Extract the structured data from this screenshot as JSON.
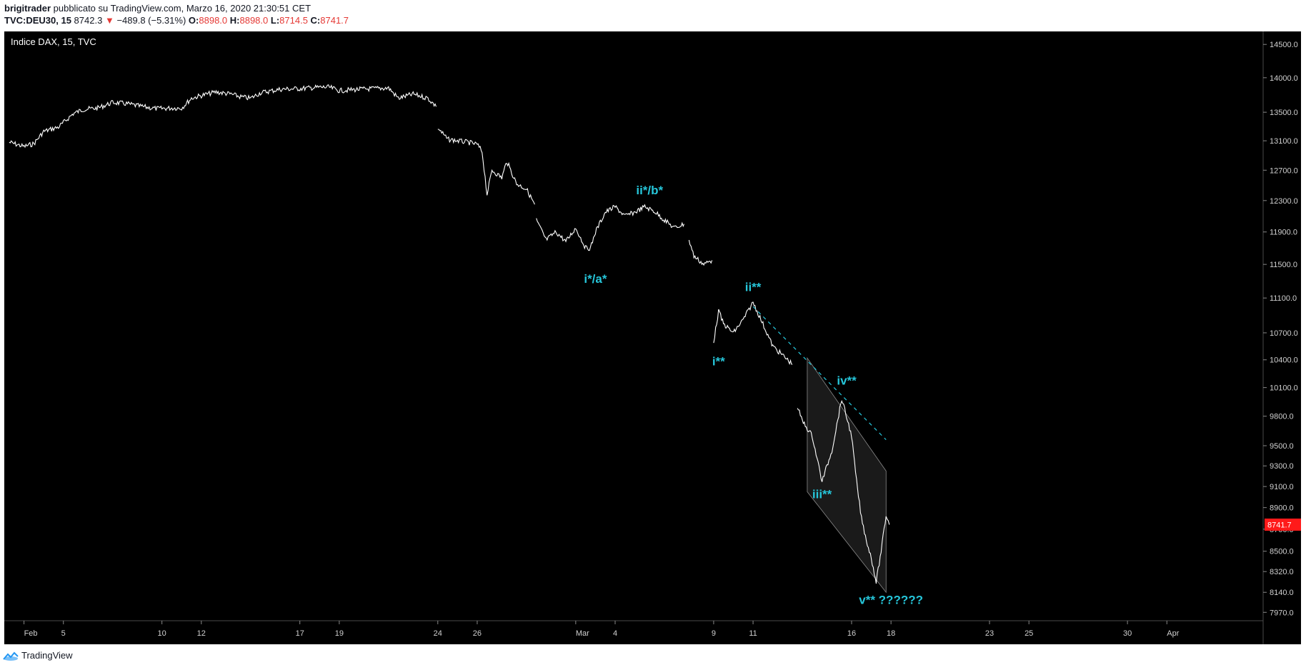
{
  "header": {
    "author": "brigitrader",
    "published_text": "pubblicato su TradingView.com, Marzo 16, 2020 21:30:51 CET",
    "symbol": "TVC:DEU30, 15",
    "last": "8742.3",
    "change": "−489.8 (−5.31%)",
    "o_label": "O:",
    "o": "8898.0",
    "h_label": "H:",
    "h": "8898.0",
    "l_label": "L:",
    "l": "8714.5",
    "c_label": "C:",
    "c": "8741.7"
  },
  "legend": "Indice DAX, 15, TVC",
  "price_badge": "8741.7",
  "footer": {
    "brand": "TradingView"
  },
  "colors": {
    "background": "#000000",
    "price": "#ffffff",
    "annotation": "#26c6da",
    "badge": "#ff1a1a",
    "down": "#e53935"
  },
  "chart_data": {
    "type": "line",
    "title": "Indice DAX, 15, TVC",
    "xlabel": "",
    "ylabel": "",
    "log_scale": true,
    "ylim": [
      7900,
      14700
    ],
    "y_ticks": [
      14500,
      14000,
      13500,
      13100,
      12700,
      12300,
      11900,
      11500,
      11100,
      10700,
      10400,
      10100,
      9800,
      9500,
      9300,
      9100,
      8900,
      8700,
      8500,
      8320,
      8140,
      7970
    ],
    "y_tick_labels": [
      "14500.0",
      "14000.0",
      "13500.0",
      "13100.0",
      "12700.0",
      "12300.0",
      "11900.0",
      "11500.0",
      "11100.0",
      "10700.0",
      "10400.0",
      "10100.0",
      "9800.0",
      "9500.0",
      "9300.0",
      "9100.0",
      "8900.0",
      "8700.0",
      "8500.0",
      "8320.0",
      "8140.0",
      "7970.0"
    ],
    "x_range_days": [
      "2020-02-02",
      "2020-04-04"
    ],
    "x_ticks": [
      {
        "date": "2020-02-03",
        "label": "Feb"
      },
      {
        "date": "2020-02-05",
        "label": "5"
      },
      {
        "date": "2020-02-10",
        "label": "10"
      },
      {
        "date": "2020-02-12",
        "label": "12"
      },
      {
        "date": "2020-02-17",
        "label": "17"
      },
      {
        "date": "2020-02-19",
        "label": "19"
      },
      {
        "date": "2020-02-24",
        "label": "24"
      },
      {
        "date": "2020-02-26",
        "label": "26"
      },
      {
        "date": "2020-03-02",
        "label": "Mar"
      },
      {
        "date": "2020-03-04",
        "label": "4"
      },
      {
        "date": "2020-03-09",
        "label": "9"
      },
      {
        "date": "2020-03-11",
        "label": "11"
      },
      {
        "date": "2020-03-16",
        "label": "16"
      },
      {
        "date": "2020-03-18",
        "label": "18"
      },
      {
        "date": "2020-03-23",
        "label": "23"
      },
      {
        "date": "2020-03-25",
        "label": "25"
      },
      {
        "date": "2020-03-30",
        "label": "30"
      },
      {
        "date": "2020-04-01",
        "label": "Apr"
      }
    ],
    "series": [
      {
        "segments": [
          [
            [
              "2020-02-02 06:00",
              13080
            ],
            [
              "2020-02-03 00:00",
              13020
            ],
            [
              "2020-02-03 12:00",
              13060
            ],
            [
              "2020-02-04 00:00",
              13230
            ],
            [
              "2020-02-04 18:00",
              13290
            ],
            [
              "2020-02-05 12:00",
              13480
            ],
            [
              "2020-02-06 00:00",
              13540
            ],
            [
              "2020-02-06 18:00",
              13560
            ],
            [
              "2020-02-07 12:00",
              13640
            ],
            [
              "2020-02-08 06:00",
              13620
            ],
            [
              "2020-02-09 00:00",
              13580
            ],
            [
              "2020-02-09 18:00",
              13550
            ],
            [
              "2020-02-10 12:00",
              13560
            ],
            [
              "2020-02-11 00:00",
              13560
            ],
            [
              "2020-02-11 12:00",
              13700
            ],
            [
              "2020-02-12 00:00",
              13740
            ],
            [
              "2020-02-12 18:00",
              13790
            ],
            [
              "2020-02-13 12:00",
              13760
            ],
            [
              "2020-02-14 00:00",
              13720
            ],
            [
              "2020-02-14 12:00",
              13700
            ],
            [
              "2020-02-15 00:00",
              13780
            ],
            [
              "2020-02-16 00:00",
              13830
            ],
            [
              "2020-02-17 00:00",
              13840
            ],
            [
              "2020-02-18 00:00",
              13860
            ],
            [
              "2020-02-18 12:00",
              13860
            ],
            [
              "2020-02-19 00:00",
              13810
            ],
            [
              "2020-02-19 12:00",
              13820
            ],
            [
              "2020-02-20 00:00",
              13830
            ],
            [
              "2020-02-20 18:00",
              13840
            ],
            [
              "2020-02-21 12:00",
              13850
            ],
            [
              "2020-02-22 00:00",
              13700
            ],
            [
              "2020-02-22 18:00",
              13760
            ],
            [
              "2020-02-23 12:00",
              13700
            ],
            [
              "2020-02-23 22:00",
              13580
            ]
          ],
          [
            [
              "2020-02-24 00:00",
              13280
            ],
            [
              "2020-02-24 12:00",
              13120
            ],
            [
              "2020-02-25 00:00",
              13100
            ],
            [
              "2020-02-25 12:00",
              13080
            ],
            [
              "2020-02-26 00:00",
              13050
            ],
            [
              "2020-02-26 06:00",
              12950
            ],
            [
              "2020-02-26 12:00",
              12380
            ],
            [
              "2020-02-26 18:00",
              12700
            ],
            [
              "2020-02-27 06:00",
              12600
            ],
            [
              "2020-02-27 12:00",
              12820
            ],
            [
              "2020-02-28 00:00",
              12520
            ],
            [
              "2020-02-28 12:00",
              12450
            ],
            [
              "2020-02-28 22:00",
              12250
            ]
          ],
          [
            [
              "2020-02-29 00:00",
              12050
            ],
            [
              "2020-02-29 12:00",
              11800
            ],
            [
              "2020-03-01 00:00",
              11900
            ],
            [
              "2020-03-01 12:00",
              11780
            ],
            [
              "2020-03-02 00:00",
              11950
            ],
            [
              "2020-03-02 12:00",
              11700
            ],
            [
              "2020-03-02 18:00",
              11700
            ],
            [
              "2020-03-03 00:00",
              11900
            ],
            [
              "2020-03-03 12:00",
              12150
            ],
            [
              "2020-03-04 00:00",
              12220
            ],
            [
              "2020-03-04 12:00",
              12100
            ],
            [
              "2020-03-05 00:00",
              12150
            ],
            [
              "2020-03-05 12:00",
              12220
            ],
            [
              "2020-03-06 00:00",
              12160
            ],
            [
              "2020-03-06 12:00",
              12050
            ],
            [
              "2020-03-07 00:00",
              11950
            ],
            [
              "2020-03-07 12:00",
              12000
            ]
          ],
          [
            [
              "2020-03-07 18:00",
              11800
            ],
            [
              "2020-03-08 00:00",
              11600
            ],
            [
              "2020-03-08 12:00",
              11500
            ],
            [
              "2020-03-08 22:00",
              11550
            ]
          ],
          [
            [
              "2020-03-09 00:00",
              10600
            ],
            [
              "2020-03-09 06:00",
              10950
            ],
            [
              "2020-03-09 12:00",
              10800
            ],
            [
              "2020-03-10 00:00",
              10700
            ],
            [
              "2020-03-10 12:00",
              10850
            ],
            [
              "2020-03-11 00:00",
              11050
            ],
            [
              "2020-03-11 12:00",
              10800
            ],
            [
              "2020-03-12 00:00",
              10550
            ],
            [
              "2020-03-12 12:00",
              10450
            ],
            [
              "2020-03-13 00:00",
              10350
            ]
          ],
          [
            [
              "2020-03-13 06:00",
              9900
            ],
            [
              "2020-03-13 12:00",
              9750
            ],
            [
              "2020-03-14 00:00",
              9600
            ],
            [
              "2020-03-14 12:00",
              9150
            ],
            [
              "2020-03-15 00:00",
              9450
            ],
            [
              "2020-03-15 12:00",
              9980
            ],
            [
              "2020-03-16 00:00",
              9600
            ],
            [
              "2020-03-16 06:00",
              9150
            ],
            [
              "2020-03-16 12:00",
              8800
            ],
            [
              "2020-03-16 18:00",
              8600
            ],
            [
              "2020-03-17 00:00",
              8440
            ],
            [
              "2020-03-17 06:00",
              8230
            ],
            [
              "2020-03-17 12:00",
              8500
            ],
            [
              "2020-03-17 18:00",
              8830
            ],
            [
              "2020-03-17 22:00",
              8742
            ]
          ]
        ]
      }
    ],
    "annotations": [
      {
        "text": "ii*/b*",
        "date": "2020-03-05 18:00",
        "price": 12380
      },
      {
        "text": "i*/a*",
        "date": "2020-03-03 00:00",
        "price": 11280
      },
      {
        "text": "ii**",
        "date": "2020-03-11 00:00",
        "price": 11180
      },
      {
        "text": "i**",
        "date": "2020-03-09 06:00",
        "price": 10340
      },
      {
        "text": "iv**",
        "date": "2020-03-15 18:00",
        "price": 10130
      },
      {
        "text": "iii**",
        "date": "2020-03-14 12:00",
        "price": 8990
      },
      {
        "text": "v** ??????",
        "date": "2020-03-18 00:00",
        "price": 8040
      }
    ],
    "trendline": [
      [
        "2020-03-11 00:00",
        11000
      ],
      [
        "2020-03-17 18:00",
        9560
      ]
    ],
    "channel": [
      [
        "2020-03-13 18:00",
        10420
      ],
      [
        "2020-03-17 18:00",
        9250
      ],
      [
        "2020-03-17 18:00",
        8140
      ],
      [
        "2020-03-13 18:00",
        9050
      ]
    ],
    "last_price": 8741.7
  }
}
